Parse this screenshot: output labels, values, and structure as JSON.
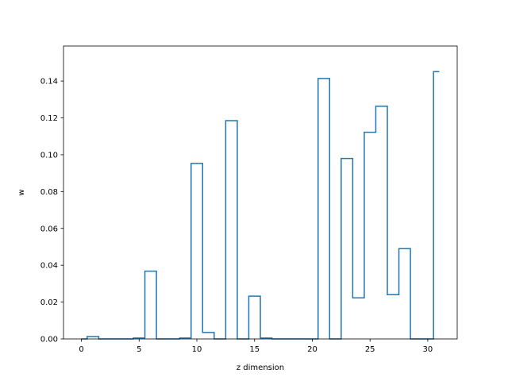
{
  "chart_data": {
    "type": "line",
    "style": "step",
    "xlabel": "z dimension",
    "ylabel": "w",
    "xlim": [
      -1.55,
      32.55
    ],
    "ylim": [
      0,
      0.159
    ],
    "grid": false,
    "line_color": "#1f77b4",
    "xticks": [
      0,
      5,
      10,
      15,
      20,
      25,
      30
    ],
    "xtick_labels": [
      "0",
      "5",
      "10",
      "15",
      "20",
      "25",
      "30"
    ],
    "yticks": [
      0,
      0.02,
      0.04,
      0.06,
      0.08,
      0.1,
      0.12,
      0.14
    ],
    "ytick_labels": [
      "0.00",
      "0.02",
      "0.04",
      "0.06",
      "0.08",
      "0.10",
      "0.12",
      "0.14"
    ],
    "series": [
      {
        "x": [
          0,
          1,
          2,
          3,
          4,
          5,
          6,
          7,
          8,
          9,
          10,
          11,
          12,
          13,
          14,
          15,
          16,
          17,
          18,
          19,
          20,
          21,
          22,
          23,
          24,
          25,
          26,
          27,
          28,
          29,
          30,
          31
        ],
        "values": [
          0,
          0.0013,
          0,
          0,
          0,
          0.0005,
          0.0368,
          0,
          0,
          0.0005,
          0.0953,
          0.0035,
          0,
          0.1185,
          0,
          0.0232,
          0.0005,
          0,
          0,
          0,
          0,
          0.1414,
          0,
          0.098,
          0.0223,
          0.1122,
          0.1263,
          0.024,
          0.049,
          0,
          0,
          0.1451
        ]
      }
    ]
  }
}
